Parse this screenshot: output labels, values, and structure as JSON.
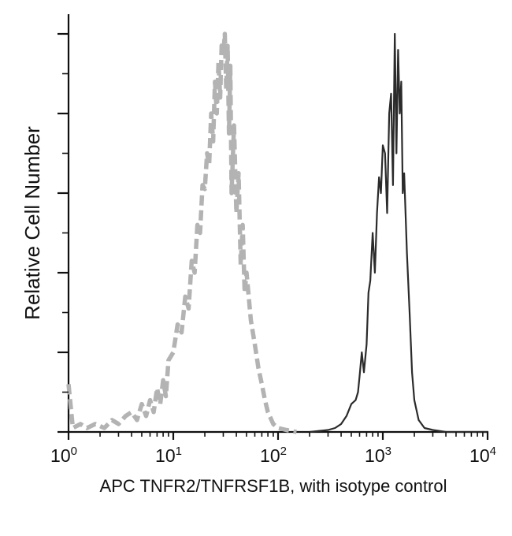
{
  "chart_data": {
    "type": "line",
    "title": "",
    "xlabel": "APC TNFR2/TNFRSF1B, with isotype control",
    "ylabel": "Relative Cell Number",
    "x_scale": "log",
    "xlim": [
      1,
      10000
    ],
    "ylim": [
      0,
      100
    ],
    "grid": false,
    "legend": "none",
    "x_tick_labels": [
      {
        "base": "10",
        "exp": "0"
      },
      {
        "base": "10",
        "exp": "1"
      },
      {
        "base": "10",
        "exp": "2"
      },
      {
        "base": "10",
        "exp": "3"
      },
      {
        "base": "10",
        "exp": "4"
      }
    ],
    "series": [
      {
        "style": "dashed",
        "color": "#b3b3b3",
        "x": [
          1,
          1.1,
          1.3,
          1.5,
          1.8,
          2.2,
          2.6,
          3,
          3.5,
          4,
          4.5,
          5,
          5.5,
          6,
          6.5,
          7,
          7.5,
          8,
          8.5,
          9,
          10,
          11,
          12,
          13,
          14,
          15,
          16,
          17,
          18,
          19,
          20,
          21,
          22,
          23,
          24,
          25,
          26,
          27,
          28,
          29,
          30,
          31,
          32,
          33,
          34,
          35,
          36,
          38,
          40,
          42,
          44,
          46,
          48,
          50,
          55,
          60,
          65,
          70,
          75,
          80,
          90,
          100,
          120,
          150
        ],
        "y": [
          12,
          1,
          2,
          1,
          2,
          1,
          3,
          2,
          4,
          5,
          3,
          7,
          4,
          8,
          5,
          11,
          7,
          13,
          9,
          18,
          20,
          27,
          25,
          34,
          31,
          43,
          40,
          52,
          50,
          62,
          61,
          70,
          67,
          80,
          73,
          88,
          80,
          93,
          84,
          98,
          95,
          100,
          86,
          97,
          75,
          92,
          60,
          77,
          55,
          65,
          42,
          52,
          35,
          40,
          28,
          22,
          16,
          12,
          8,
          5,
          2,
          1,
          0.5,
          0
        ]
      },
      {
        "style": "solid",
        "color": "#2b2b2b",
        "x": [
          200,
          300,
          350,
          400,
          450,
          500,
          550,
          580,
          600,
          630,
          660,
          700,
          730,
          760,
          800,
          840,
          880,
          920,
          960,
          1000,
          1050,
          1100,
          1150,
          1200,
          1250,
          1300,
          1350,
          1400,
          1450,
          1500,
          1550,
          1600,
          1700,
          1800,
          1900,
          2000,
          2200,
          2500,
          3000,
          4000,
          10000
        ],
        "y": [
          0,
          0.5,
          1,
          2,
          4,
          7,
          8,
          10,
          14,
          20,
          15,
          22,
          35,
          38,
          50,
          40,
          55,
          64,
          60,
          72,
          70,
          55,
          80,
          85,
          62,
          100,
          70,
          96,
          80,
          88,
          60,
          65,
          45,
          30,
          15,
          8,
          3,
          1,
          0.5,
          0,
          0
        ]
      }
    ]
  }
}
